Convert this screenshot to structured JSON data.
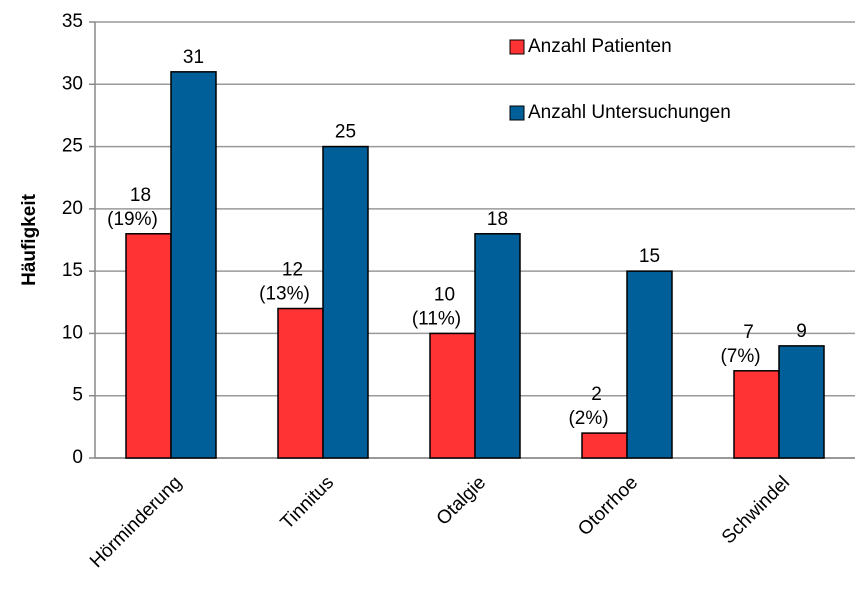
{
  "chart_data": {
    "type": "bar",
    "y_label": "Häufigkeit",
    "categories": [
      "Hörminderung",
      "Tinnitus",
      "Otalgie",
      "Otorrhoe",
      "Schwindel"
    ],
    "series": [
      {
        "name": "Anzahl Patienten",
        "color": "#ff3333",
        "values": [
          18,
          12,
          10,
          2,
          7
        ],
        "value_labels": [
          [
            "18",
            "(19%)"
          ],
          [
            "12",
            "(13%)"
          ],
          [
            "10",
            "(11%)"
          ],
          [
            "2",
            "(2%)"
          ],
          [
            "7",
            "(7%)"
          ]
        ]
      },
      {
        "name": "Anzahl Untersuchungen",
        "color": "#005f98",
        "values": [
          31,
          25,
          18,
          15,
          9
        ]
      }
    ],
    "ylim": [
      0,
      35
    ],
    "yticks": [
      0,
      5,
      10,
      15,
      20,
      25,
      30,
      35
    ],
    "grid": true,
    "legend": "top-right"
  }
}
